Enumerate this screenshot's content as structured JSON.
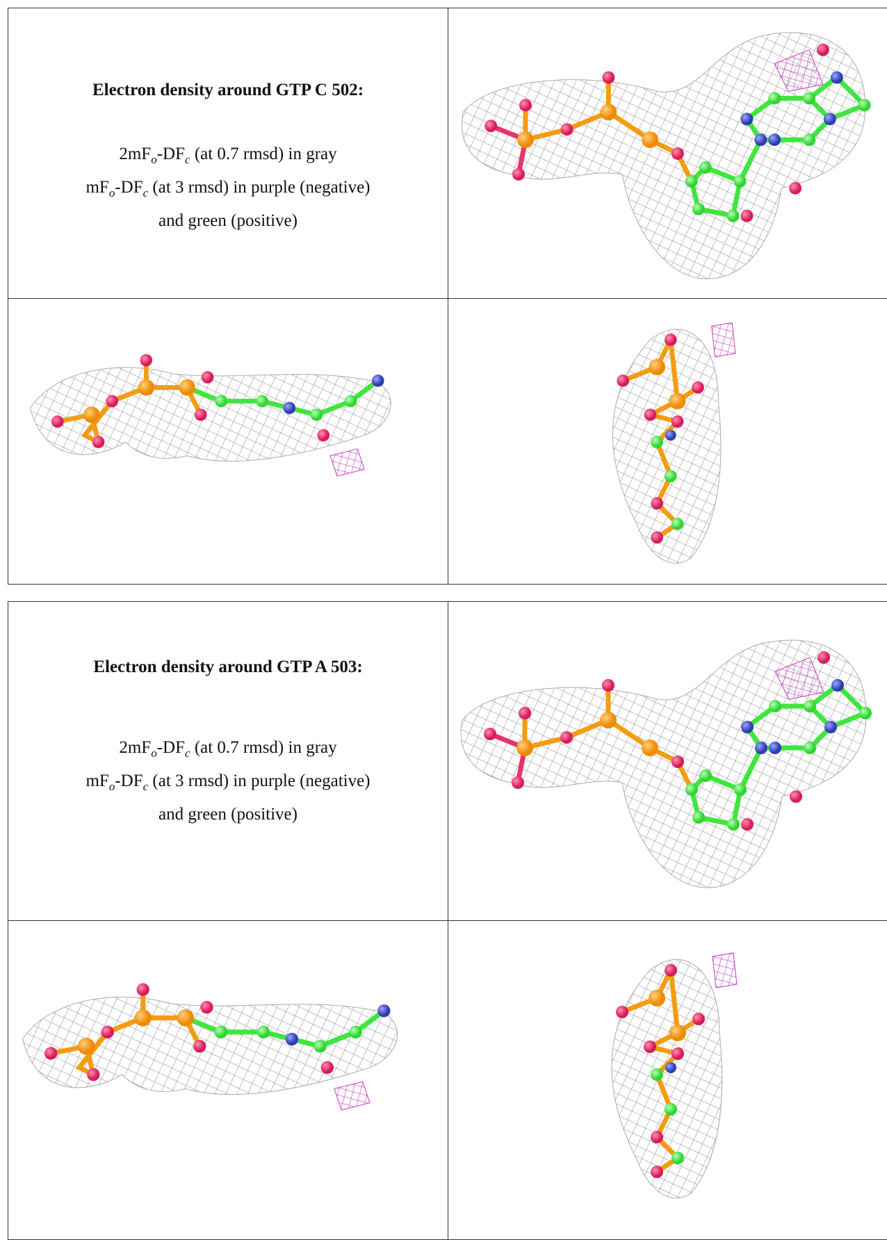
{
  "panels": [
    {
      "title": "Electron density around GTP C 502:",
      "legend": [
        [
          "2mF",
          "o",
          "-DF",
          "c",
          " (at 0.7 rmsd) in gray"
        ],
        [
          "mF",
          "o",
          "-DF",
          "c",
          " (at 3 rmsd) in purple (negative)"
        ],
        [
          "and green (positive)"
        ]
      ]
    },
    {
      "title": "Electron density around GTP A 503:",
      "legend": [
        [
          "2mF",
          "o",
          "-DF",
          "c",
          " (at 0.7 rmsd) in gray"
        ],
        [
          "mF",
          "o",
          "-DF",
          "c",
          " (at 3 rmsd) in purple (negative)"
        ],
        [
          "and green (positive)"
        ]
      ]
    }
  ]
}
